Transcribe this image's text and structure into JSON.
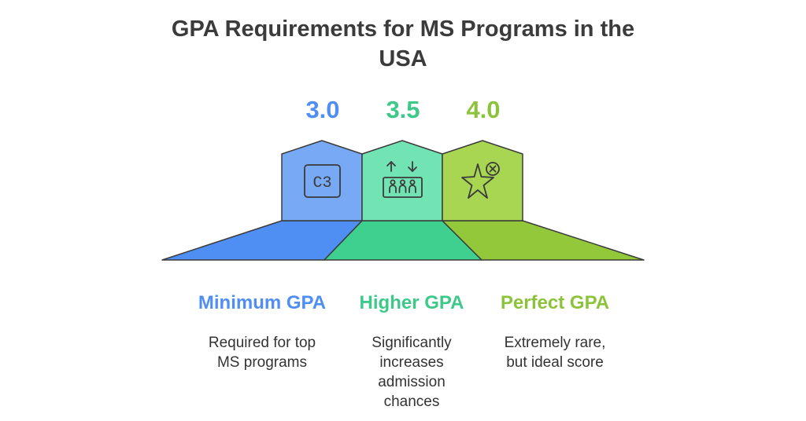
{
  "title": "GPA Requirements for MS Programs in the USA",
  "colors": {
    "blue": "#4f8ef2",
    "green": "#3ed08f",
    "lime": "#93c83a"
  },
  "levels": [
    {
      "value": "3.0",
      "icon": "c3-icon",
      "icon_text": "C3",
      "label": "Minimum GPA",
      "description": "Required for top\nMS programs"
    },
    {
      "value": "3.5",
      "icon": "elevator-icon",
      "label": "Higher GPA",
      "description": "Significantly\nincreases\nadmission\nchances"
    },
    {
      "value": "4.0",
      "icon": "star-x-icon",
      "label": "Perfect GPA",
      "description": "Extremely rare,\nbut ideal score"
    }
  ]
}
